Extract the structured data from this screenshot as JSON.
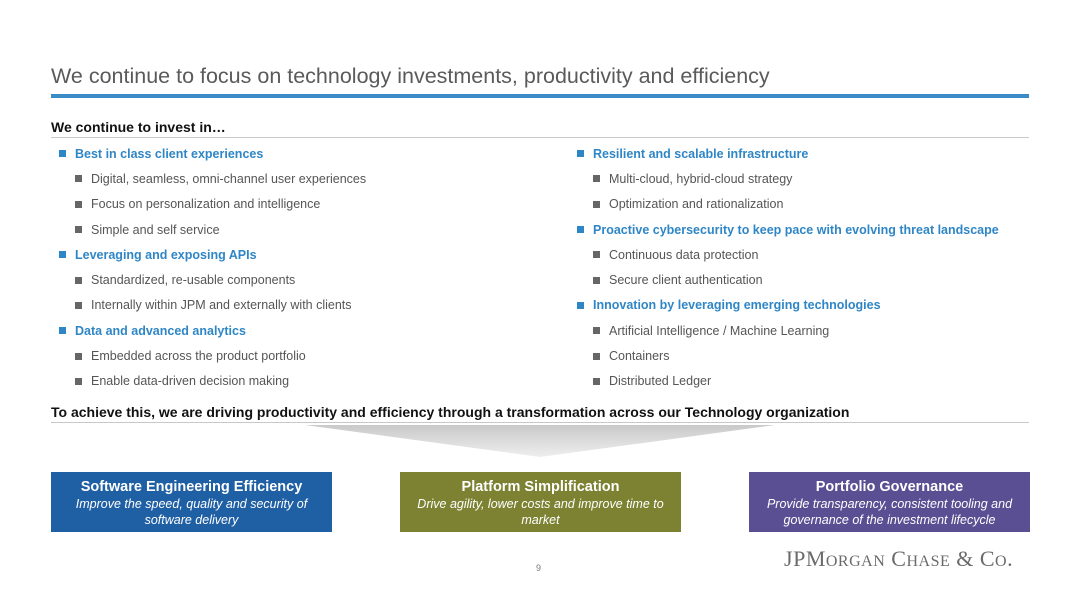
{
  "slide": {
    "title": "We continue to focus on technology investments, productivity and efficiency",
    "invest_heading": "We continue to invest in…",
    "left_items": [
      {
        "level": 1,
        "text": "Best in class client experiences"
      },
      {
        "level": 2,
        "text": "Digital, seamless, omni-channel user experiences"
      },
      {
        "level": 2,
        "text": "Focus on personalization and intelligence"
      },
      {
        "level": 2,
        "text": "Simple and self service"
      },
      {
        "level": 1,
        "text": "Leveraging and exposing APIs"
      },
      {
        "level": 2,
        "text": "Standardized, re-usable components"
      },
      {
        "level": 2,
        "text": "Internally within JPM and externally with clients"
      },
      {
        "level": 1,
        "text": "Data and advanced analytics"
      },
      {
        "level": 2,
        "text": "Embedded across the product portfolio"
      },
      {
        "level": 2,
        "text": "Enable data-driven decision making"
      }
    ],
    "right_items": [
      {
        "level": 1,
        "text": "Resilient and scalable infrastructure"
      },
      {
        "level": 2,
        "text": "Multi-cloud, hybrid-cloud strategy"
      },
      {
        "level": 2,
        "text": "Optimization and rationalization"
      },
      {
        "level": 1,
        "text": "Proactive cybersecurity to keep pace with evolving threat landscape"
      },
      {
        "level": 2,
        "text": "Continuous data protection"
      },
      {
        "level": 2,
        "text": "Secure client authentication"
      },
      {
        "level": 1,
        "text": "Innovation by leveraging emerging technologies"
      },
      {
        "level": 2,
        "text": "Artificial Intelligence / Machine Learning"
      },
      {
        "level": 2,
        "text": "Containers"
      },
      {
        "level": 2,
        "text": "Distributed Ledger"
      }
    ],
    "achieve_heading": "To achieve this, we are driving productivity and efficiency through a transformation across our Technology organization",
    "boxes": [
      {
        "title": "Software Engineering Efficiency",
        "desc": "Improve the speed, quality and security of software delivery",
        "color": "#1f5fa4"
      },
      {
        "title": "Platform Simplification",
        "desc": "Drive agility, lower costs and improve time to market",
        "color": "#7c8232"
      },
      {
        "title": "Portfolio Governance",
        "desc": "Provide transparency, consistent tooling and governance of the investment lifecycle",
        "color": "#5a4f93"
      }
    ],
    "page_number": "9",
    "logo": "JPMorgan Chase & Co."
  },
  "colors": {
    "accent_blue": "#3a8cc8",
    "heading_blue": "#2f86c6"
  }
}
